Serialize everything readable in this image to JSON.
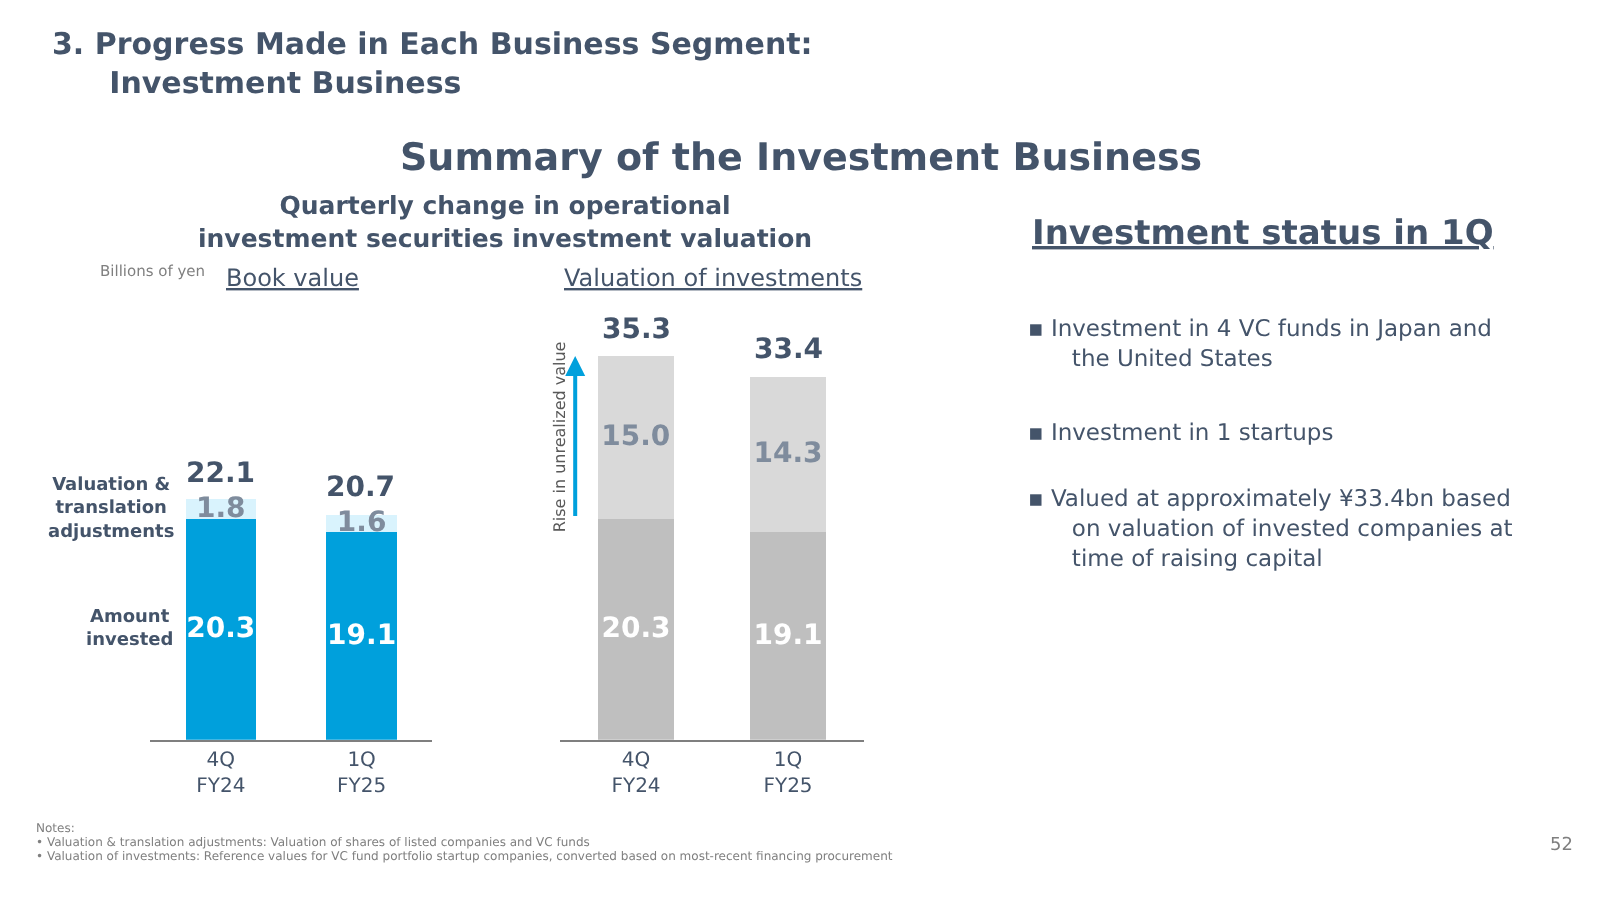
{
  "chart_data": [
    {
      "type": "bar",
      "title": "Book value",
      "stacked": true,
      "tick_labels": "x",
      "categories": [
        "4Q FY24",
        "1Q FY25"
      ],
      "series": [
        {
          "name": "Amount invested",
          "color": "#00a0dc",
          "values": [
            20.3,
            19.1
          ],
          "value_labels": [
            "20.3",
            "19.1"
          ]
        },
        {
          "name": "Valuation & translation adjustments",
          "color": "#d9f3fd",
          "values": [
            1.8,
            1.6
          ],
          "value_labels": [
            "1.8",
            "1.6"
          ]
        }
      ],
      "totals": [
        "22.1",
        "20.7"
      ],
      "annotations": [
        "3. Progress Made in Each Business Segment:\nInvestment Business",
        "Summary of the Investment Business",
        "Quarterly change in operational\ninvestment securities investment valuation",
        "Billions of yen",
        "Notes:",
        "• Valuation & translation adjustments: Valuation of shares of listed companies and VC funds",
        "• Valuation of investments: Reference values for VC fund portfolio startup companies, converted based on most-recent financing procurement",
        "52"
      ]
    },
    {
      "type": "bar",
      "title": "Valuation of investments",
      "stacked": true,
      "tick_labels": "x",
      "categories": [
        "4Q FY24",
        "1Q FY25"
      ],
      "series": [
        {
          "color": "#bfbfbf",
          "values": [
            20.3,
            19.1
          ],
          "value_labels": [
            "20.3",
            "19.1"
          ]
        },
        {
          "color": "#d9d9d9",
          "values": [
            15.0,
            14.3
          ],
          "value_labels": [
            "15.0",
            "14.3"
          ]
        }
      ],
      "totals": [
        "35.3",
        "33.4"
      ],
      "annotations": [
        "Rise in unrealized value"
      ]
    },
    {
      "type": "other",
      "title": "Investment status in 1Q",
      "annotations": [
        "▪ Investment in 4 VC funds in Japan and the United States",
        "▪ Investment in 1 startups",
        "▪ Valued at approximately ¥33.4bn based on valuation of invested companies at time of raising capital"
      ]
    }
  ]
}
